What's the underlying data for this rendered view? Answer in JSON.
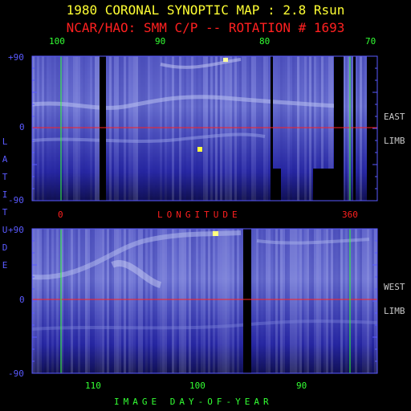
{
  "title": "1980 CORONAL SYNOPTIC MAP : 2.8 Rsun",
  "subtitle": "NCAR/HAO: SMM C/P -- ROTATION # 1693",
  "colors": {
    "title": "#ffff33",
    "subtitle": "#ff2020",
    "axis": "#5a5aff",
    "green": "#33ff33",
    "red": "#ff2020",
    "limb": "#c8c8c8"
  },
  "top_panel": {
    "top_ticks": [
      "100",
      "90",
      "80",
      "70"
    ],
    "y_ticks": [
      "+90",
      "0",
      "-90"
    ],
    "limb_label_1": "EAST",
    "limb_label_2": "LIMB",
    "bottom_ticks": [
      "0",
      "360"
    ],
    "xlabel": "LONGITUDE"
  },
  "bottom_panel": {
    "y_ticks": [
      "+90",
      "0",
      "-90"
    ],
    "limb_label_1": "WEST",
    "limb_label_2": "LIMB",
    "bottom_ticks": [
      "110",
      "100",
      "90"
    ],
    "xlabel": "IMAGE DAY-OF-YEAR"
  },
  "ylabel_letters": [
    "L",
    "A",
    "T",
    "I",
    "T",
    "U",
    "D",
    "E"
  ]
}
